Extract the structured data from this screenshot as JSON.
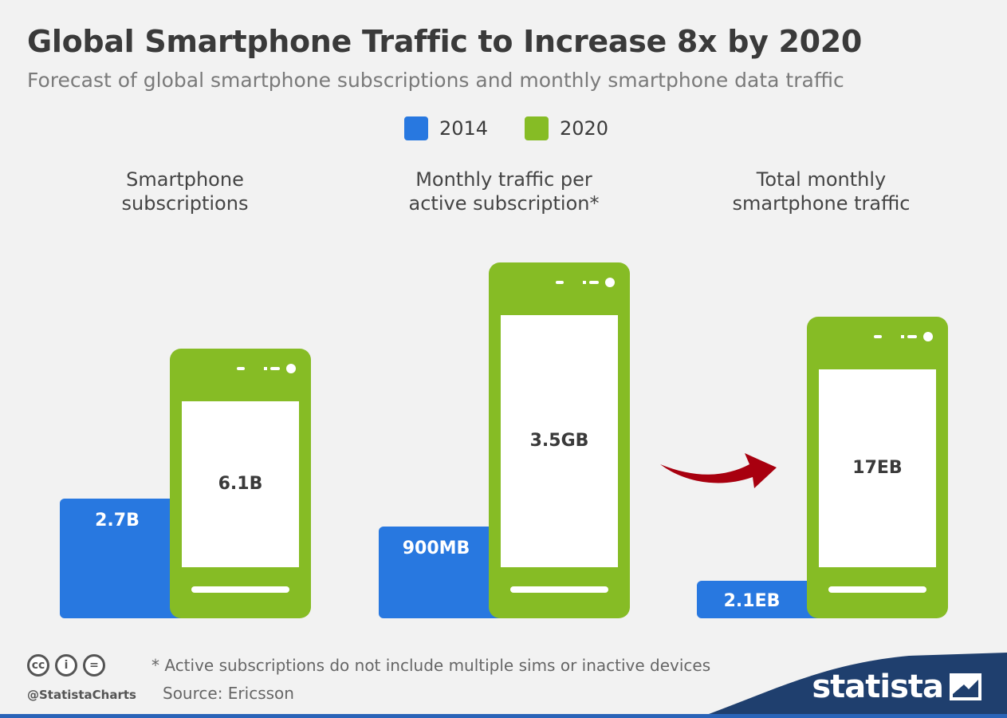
{
  "header": {
    "title": "Global Smartphone Traffic to Increase 8x by 2020",
    "subtitle": "Forecast of global smartphone subscriptions and monthly smartphone data traffic"
  },
  "colors": {
    "series_2014": "#2878e0",
    "series_2020": "#86bc25",
    "arrow": "#a8000f",
    "footer_band": "#1f3f6e",
    "screen": "#ffffff",
    "value_text": "#3a3a3a"
  },
  "chart_data": {
    "type": "bar",
    "title": "Global Smartphone Traffic to Increase 8x by 2020",
    "subtitle": "Forecast of global smartphone subscriptions and monthly smartphone data traffic",
    "legend_position": "top-center",
    "series": [
      {
        "name": "2014",
        "color": "#2878e0"
      },
      {
        "name": "2020",
        "color": "#86bc25"
      }
    ],
    "groups": [
      {
        "category": "Smartphone subscriptions",
        "label_lines": [
          "Smartphone",
          "subscriptions"
        ],
        "values": {
          "2014": 2.7,
          "2020": 6.1
        },
        "unit": "B",
        "labels": {
          "2014": "2.7B",
          "2020": "6.1B"
        }
      },
      {
        "category": "Monthly traffic per active subscription*",
        "label_lines": [
          "Monthly traffic per",
          "active subscription*"
        ],
        "values": {
          "2014": 0.9,
          "2020": 3.5
        },
        "unit": "GB",
        "labels": {
          "2014": "900MB",
          "2020": "3.5GB"
        }
      },
      {
        "category": "Total monthly smartphone traffic",
        "label_lines": [
          "Total monthly",
          "smartphone traffic"
        ],
        "values": {
          "2014": 2.1,
          "2020": 17
        },
        "unit": "EB",
        "labels": {
          "2014": "2.1EB",
          "2020": "17EB"
        }
      }
    ],
    "annotations": [
      "arrow from middle group to total traffic group"
    ],
    "grid": false
  },
  "footer": {
    "note": "* Active subscriptions do not include multiple sims or inactive devices",
    "source": "Source: Ericsson",
    "handle": "@StatistaCharts",
    "brand": "statista",
    "license_icons": [
      {
        "name": "cc-icon",
        "glyph": "cc"
      },
      {
        "name": "by-icon",
        "glyph": "i"
      },
      {
        "name": "nd-icon",
        "glyph": "="
      }
    ]
  }
}
